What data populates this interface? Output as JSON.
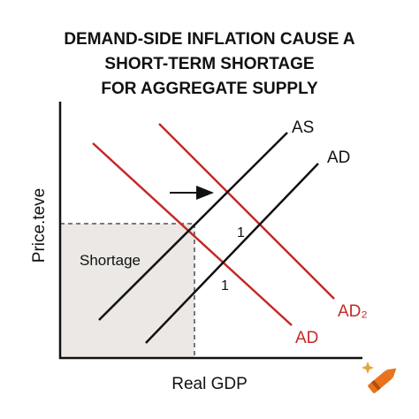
{
  "title": {
    "lines": [
      "DEMAND-SIDE INFLATION CAUSE A",
      "SHORT-TERM SHORTAGE",
      "FOR AGGREGATE SUPPLY"
    ]
  },
  "axes": {
    "y_label": "Price.teve",
    "x_label": "Real GDP"
  },
  "curves": {
    "as": "AS",
    "ad_black": "AD",
    "ad2": "AD₂",
    "ad_red": "AD"
  },
  "annotations": {
    "upper_marker": "1",
    "lower_marker": "1",
    "shortage": "Shortage"
  }
}
